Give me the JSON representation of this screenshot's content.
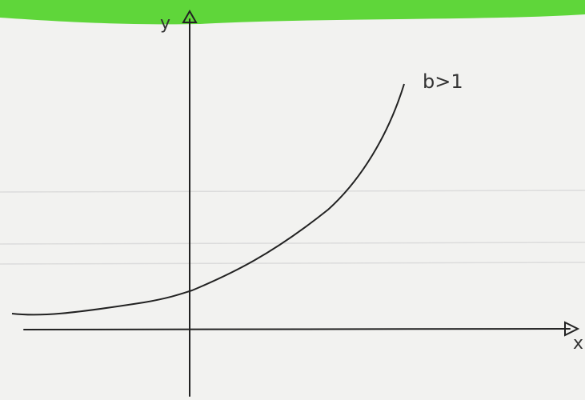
{
  "axis_labels": {
    "y": "y",
    "x": "x"
  },
  "curve_label": "b>1"
}
